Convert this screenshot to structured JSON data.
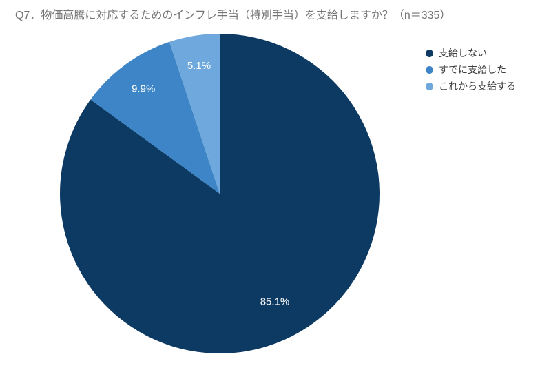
{
  "chart_data": {
    "type": "pie",
    "title": "Q7．物価高騰に対応するためのインフレ手当（特別手当）を支給しますか？（n＝335）",
    "sample_size_label": "n＝335",
    "categories": [
      "支給しない",
      "すでに支給した",
      "これから支給する"
    ],
    "values": [
      85.1,
      9.9,
      5.1
    ],
    "value_labels": [
      "85.1%",
      "9.9%",
      "5.1%"
    ],
    "colors": [
      "#0d3a63",
      "#3d85c6",
      "#6fa8dc"
    ],
    "start_angle_deg": 0,
    "direction": "clockwise",
    "slice_label_color": "#ffffff",
    "legend_position": "right",
    "background": "#ffffff",
    "title_color": "#757575"
  },
  "legend": {
    "entries": [
      {
        "label": "支給しない",
        "color": "#0d3a63"
      },
      {
        "label": "すでに支給した",
        "color": "#3d85c6"
      },
      {
        "label": "これから支給する",
        "color": "#6fa8dc"
      }
    ]
  }
}
